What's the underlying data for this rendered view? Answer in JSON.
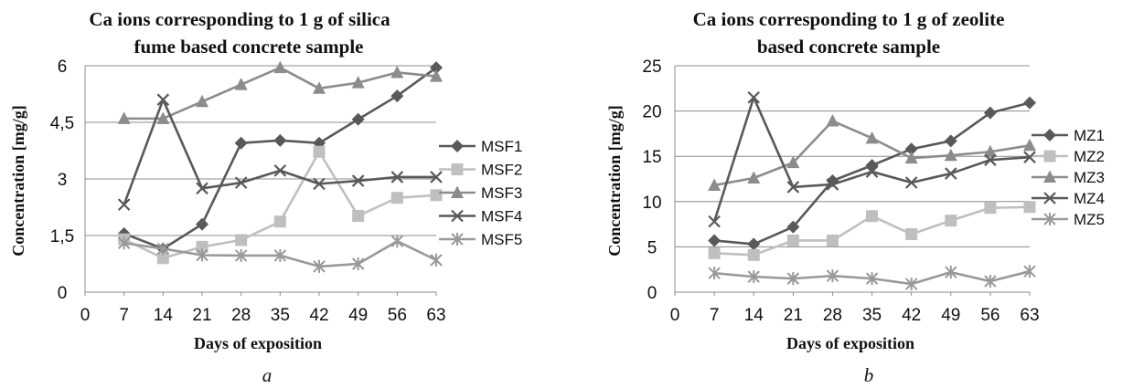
{
  "chart_data": [
    {
      "type": "line",
      "panel_label": "a",
      "title_lines": [
        "Ca ions corresponding to 1 g of  silica",
        "fume based concrete sample"
      ],
      "xlabel": "Days of exposition",
      "ylabel": "Concentration [mg/g]",
      "x_ticks": [
        "0",
        "7",
        "14",
        "21",
        "28",
        "35",
        "42",
        "49",
        "56",
        "63"
      ],
      "y_ticks": [
        "0",
        "1,5",
        "3",
        "4,5",
        "6"
      ],
      "xlim": [
        0,
        63
      ],
      "ylim": [
        0,
        6
      ],
      "x": [
        7,
        14,
        21,
        28,
        35,
        42,
        49,
        56,
        63
      ],
      "grid": true,
      "legend_position": "right",
      "series": [
        {
          "name": "MSF1",
          "marker": "diamond",
          "color": "#595959",
          "values": [
            1.55,
            1.15,
            1.8,
            3.95,
            4.02,
            3.95,
            4.58,
            5.2,
            5.95
          ]
        },
        {
          "name": "MSF2",
          "marker": "square",
          "color": "#bfbfbf",
          "values": [
            1.4,
            0.9,
            1.2,
            1.38,
            1.87,
            3.72,
            2.02,
            2.5,
            2.57
          ]
        },
        {
          "name": "MSF3",
          "marker": "triangle",
          "color": "#8c8c8c",
          "values": [
            4.6,
            4.6,
            5.05,
            5.5,
            5.95,
            5.4,
            5.55,
            5.82,
            5.72
          ]
        },
        {
          "name": "MSF4",
          "marker": "x",
          "color": "#595959",
          "values": [
            2.32,
            5.1,
            2.75,
            2.9,
            3.22,
            2.87,
            2.95,
            3.05,
            3.05
          ]
        },
        {
          "name": "MSF5",
          "marker": "star",
          "color": "#999999",
          "values": [
            1.3,
            1.15,
            0.98,
            0.97,
            0.97,
            0.68,
            0.75,
            1.35,
            0.85
          ]
        }
      ]
    },
    {
      "type": "line",
      "panel_label": "b",
      "title_lines": [
        "Ca ions corresponding to 1 g of  zeolite",
        "based concrete sample"
      ],
      "xlabel": "Days of exposition",
      "ylabel": "Concentration [mg/g]",
      "x_ticks": [
        "0",
        "7",
        "14",
        "21",
        "28",
        "35",
        "42",
        "49",
        "56",
        "63"
      ],
      "y_ticks": [
        "0",
        "5",
        "10",
        "15",
        "20",
        "25"
      ],
      "xlim": [
        0,
        63
      ],
      "ylim": [
        0,
        25
      ],
      "x": [
        7,
        14,
        21,
        28,
        35,
        42,
        49,
        56,
        63
      ],
      "grid": true,
      "legend_position": "right",
      "series": [
        {
          "name": "MZ1",
          "marker": "diamond",
          "color": "#595959",
          "values": [
            5.7,
            5.3,
            7.2,
            12.3,
            14.0,
            15.8,
            16.7,
            19.8,
            20.9
          ]
        },
        {
          "name": "MZ2",
          "marker": "square",
          "color": "#bfbfbf",
          "values": [
            4.3,
            4.1,
            5.7,
            5.7,
            8.4,
            6.4,
            7.9,
            9.3,
            9.4
          ]
        },
        {
          "name": "MZ3",
          "marker": "triangle",
          "color": "#8c8c8c",
          "values": [
            11.8,
            12.6,
            14.3,
            18.9,
            17.0,
            14.8,
            15.1,
            15.5,
            16.2
          ]
        },
        {
          "name": "MZ4",
          "marker": "x",
          "color": "#595959",
          "values": [
            7.8,
            21.5,
            11.6,
            11.9,
            13.3,
            12.1,
            13.1,
            14.6,
            14.9
          ]
        },
        {
          "name": "MZ5",
          "marker": "star",
          "color": "#999999",
          "values": [
            2.1,
            1.7,
            1.5,
            1.8,
            1.5,
            0.9,
            2.2,
            1.2,
            2.3
          ]
        }
      ]
    }
  ]
}
